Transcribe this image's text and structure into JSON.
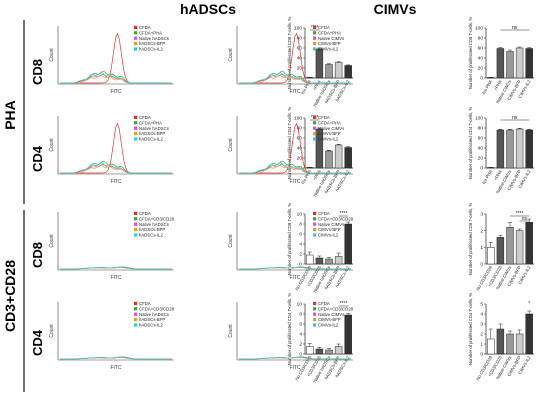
{
  "column_titles": [
    "hADSCs",
    "CIMVs"
  ],
  "section_labels": [
    "PHA",
    "CD3+CD28"
  ],
  "row_labels": [
    "CD8",
    "CD4",
    "CD8",
    "CD4"
  ],
  "histogram_axis": {
    "xlabel": "FITC",
    "ylabel": "Count"
  },
  "series_colors": {
    "CFDA": "#e03030",
    "CFDA+PHA": "#3aa63a",
    "CFDA+CD3/CD28": "#3aa63a",
    "Native hADSCs": "#e050c8",
    "Native CIMVs": "#e050c8",
    "hADSCs-BFP": "#e0a020",
    "CIMVs-BFP": "#e0a020",
    "hADSCs-IL2": "#30c8d8",
    "CIMVs-IL2": "#30c8d8"
  },
  "legends": {
    "pha_hadsc": [
      "CFDA",
      "CFDA+PHA",
      "Native hADSCs",
      "hADSCs-BFP",
      "hADSCs-IL2"
    ],
    "pha_cimv": [
      "CFDA",
      "CFDA+PHA",
      "Native CIMVs",
      "CIMVs-BFP",
      "CIMVs-IL2"
    ],
    "cd3_hadsc": [
      "CFDA",
      "CFDA+CD3/CD28",
      "Native hADSCs",
      "hADSCs-BFP",
      "hADSCs-IL2"
    ],
    "cd3_cimv": [
      "CFDA",
      "CFDA+CD3/CD28",
      "Native CIMVs",
      "CIMVs-BFP",
      "CIMVs-IL2"
    ]
  },
  "chart_data": [
    {
      "type": "bar",
      "ylabel": "Number of proliferated CD8 T-cells, %",
      "categories": [
        "No PHA",
        "+PHA",
        "Native hADSCs",
        "hADSCs-BFP",
        "hADSCs-IL2"
      ],
      "values": [
        1,
        58,
        27,
        31,
        25
      ],
      "errors": [
        0.3,
        2,
        1.5,
        1.5,
        1.2
      ],
      "ylim": [
        0,
        100
      ],
      "yticks": [
        0,
        20,
        40,
        60,
        80,
        100
      ],
      "significance": [
        {
          "text": "****",
          "from": 0,
          "to": 1
        }
      ]
    },
    {
      "type": "bar",
      "ylabel": "Number of proliferated CD8 T-cells, %",
      "categories": [
        "No PHA",
        "+PHA",
        "Native CIMVs",
        "CIMVs-BFP",
        "CIMVs-IL2"
      ],
      "values": [
        1,
        59,
        53,
        60,
        59
      ],
      "errors": [
        0.3,
        2,
        3,
        2,
        2
      ],
      "ylim": [
        0,
        100
      ],
      "yticks": [
        0,
        20,
        40,
        60,
        80,
        100
      ],
      "significance": [
        {
          "text": "ns",
          "from": 1,
          "to": 4
        }
      ]
    },
    {
      "type": "bar",
      "ylabel": "Number of proliferated CD4 T-cells, %",
      "categories": [
        "No PHA",
        "+PHA",
        "Native hADSCs",
        "hADSCs-BFP",
        "hADSCs-IL2"
      ],
      "values": [
        1,
        78,
        34,
        46,
        41
      ],
      "errors": [
        0.3,
        2,
        1.5,
        1.5,
        1.5
      ],
      "ylim": [
        0,
        100
      ],
      "yticks": [
        0,
        20,
        40,
        60,
        80,
        100
      ],
      "significance": [
        {
          "text": "****",
          "from": 0,
          "to": 1
        }
      ]
    },
    {
      "type": "bar",
      "ylabel": "Number of proliferated CD4 T-cells, %",
      "categories": [
        "No PHA",
        "+PHA",
        "Native CIMVs",
        "CIMVs-BFP",
        "CIMVs-IL2"
      ],
      "values": [
        1,
        76,
        76,
        78,
        76
      ],
      "errors": [
        0.3,
        1.5,
        1.5,
        1.5,
        1.5
      ],
      "ylim": [
        0,
        100
      ],
      "yticks": [
        0,
        20,
        40,
        60,
        80,
        100
      ],
      "significance": [
        {
          "text": "ns",
          "from": 1,
          "to": 4
        }
      ]
    },
    {
      "type": "bar",
      "ylabel": "Number of proliferated CD8 T-cells, %",
      "categories": [
        "No CD3/CD28",
        "+CD3/CD28",
        "Native hADSCs",
        "hADSCs-BFP",
        "hADSCs-IL2"
      ],
      "values": [
        1.8,
        1.2,
        1.0,
        1.5,
        8.0
      ],
      "errors": [
        0.6,
        0.4,
        0.3,
        0.7,
        0.4
      ],
      "ylim": [
        0,
        10
      ],
      "yticks": [
        0,
        2,
        4,
        6,
        8,
        10
      ],
      "significance": [
        {
          "text": "****",
          "from": 3,
          "to": 4
        }
      ]
    },
    {
      "type": "bar",
      "ylabel": "Number of proliferated CD8 T-cells, %",
      "categories": [
        "No CD3/CD28",
        "+CD3/CD28",
        "Native CIMVs",
        "CIMVs-BFP",
        "CIMVs-IL2"
      ],
      "values": [
        1.0,
        1.6,
        2.2,
        2.0,
        2.5
      ],
      "errors": [
        0.3,
        0.1,
        0.3,
        0.1,
        0.2
      ],
      "ylim": [
        0,
        3
      ],
      "yticks": [
        0,
        1,
        2,
        3
      ],
      "significance": [
        {
          "text": "****",
          "from": 2,
          "to": 4
        },
        {
          "text": "ns",
          "from": 3,
          "to": 4
        }
      ]
    },
    {
      "type": "bar",
      "ylabel": "Number of proliferated CD4 T-cells, %",
      "categories": [
        "No CD3/CD28",
        "+CD3/CD28",
        "Native hADSCs",
        "hADSCs-BFP",
        "hADSCs-IL2"
      ],
      "values": [
        1.5,
        1.0,
        0.8,
        1.5,
        7.8
      ],
      "errors": [
        0.6,
        0.3,
        0.3,
        0.5,
        0.3
      ],
      "ylim": [
        0,
        10
      ],
      "yticks": [
        0,
        2,
        4,
        6,
        8,
        10
      ],
      "significance": [
        {
          "text": "****",
          "from": 3,
          "to": 4
        }
      ]
    },
    {
      "type": "bar",
      "ylabel": "Number of proliferated CD4 T-cells, %",
      "categories": [
        "No CD3/CD28",
        "+CD3/CD28",
        "Native CIMVs",
        "CIMVs-BFP",
        "CIMVs-IL2"
      ],
      "values": [
        1.5,
        2.5,
        2.0,
        2.0,
        4.0
      ],
      "errors": [
        1.0,
        0.5,
        0.3,
        0.4,
        0.3
      ],
      "ylim": [
        0,
        5
      ],
      "yticks": [
        0,
        1,
        2,
        3,
        4,
        5
      ],
      "significance": [
        {
          "text": "*",
          "from": 4,
          "to": 4
        }
      ]
    }
  ]
}
